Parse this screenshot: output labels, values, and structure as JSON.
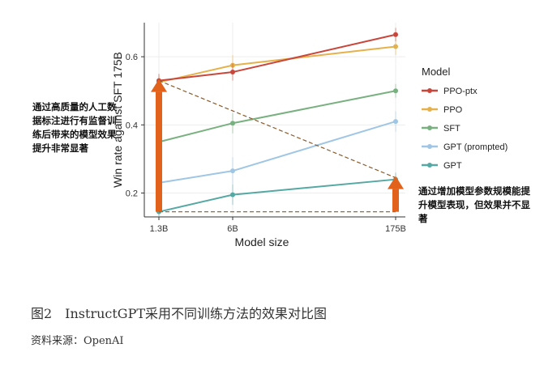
{
  "chart_data": {
    "type": "line",
    "title": "",
    "xlabel": "Model size",
    "ylabel": "Win rate against SFT 175B",
    "categories": [
      "1.3B",
      "6B",
      "175B"
    ],
    "xtick_labels": [
      "1.3B",
      "6B",
      "175B"
    ],
    "ylim": [
      0.13,
      0.7
    ],
    "yticks": [
      0.2,
      0.4,
      0.6
    ],
    "ytick_labels": [
      "0.2",
      "0.4",
      "0.6"
    ],
    "grid": true,
    "legend": {
      "title": "Model",
      "position": "right",
      "entries": [
        "PPO-ptx",
        "PPO",
        "SFT",
        "GPT (prompted)",
        "GPT"
      ]
    },
    "series": [
      {
        "name": "PPO-ptx",
        "color": "#c9463b",
        "values": [
          0.53,
          0.555,
          0.665
        ],
        "err": [
          0.02,
          0.025,
          0.02
        ]
      },
      {
        "name": "PPO",
        "color": "#e5b14b",
        "values": [
          0.525,
          0.575,
          0.63
        ],
        "err": [
          0.02,
          0.03,
          0.025
        ]
      },
      {
        "name": "SFT",
        "color": "#78b17f",
        "values": [
          0.35,
          0.405,
          0.5
        ],
        "err": [
          0.02,
          0.03,
          0.02
        ]
      },
      {
        "name": "GPT (prompted)",
        "color": "#9fc6e4",
        "values": [
          0.23,
          0.265,
          0.41
        ],
        "err": [
          0.02,
          0.04,
          0.03
        ]
      },
      {
        "name": "GPT",
        "color": "#55a8a3",
        "values": [
          0.145,
          0.195,
          0.24
        ],
        "err": [
          0.015,
          0.03,
          0.02
        ]
      }
    ],
    "overlays": {
      "arrow_color": "#e2621b",
      "dashed_color": "#8a5a2b",
      "vertical_arrows": [
        {
          "x": "1.3B",
          "from": 0.145,
          "to": 0.53
        },
        {
          "x": "175B",
          "from": 0.145,
          "to": 0.245
        }
      ],
      "dashed_lines": [
        {
          "from": {
            "x": "1.3B",
            "y": 0.53
          },
          "to": {
            "x": "175B",
            "y": 0.245
          }
        },
        {
          "from": {
            "x": "1.3B",
            "y": 0.145
          },
          "to": {
            "x": "175B",
            "y": 0.145
          }
        }
      ]
    }
  },
  "annotations": {
    "left": "通过高质量的人工数据标注进行有监督训练后带来的模型效果提升非常显著",
    "right": "通过增加模型参数规模能提升模型表现，但效果并不显著"
  },
  "caption": {
    "figure": "图2　InstructGPT采用不同训练方法的效果对比图",
    "source": "资料来源：OpenAI"
  }
}
